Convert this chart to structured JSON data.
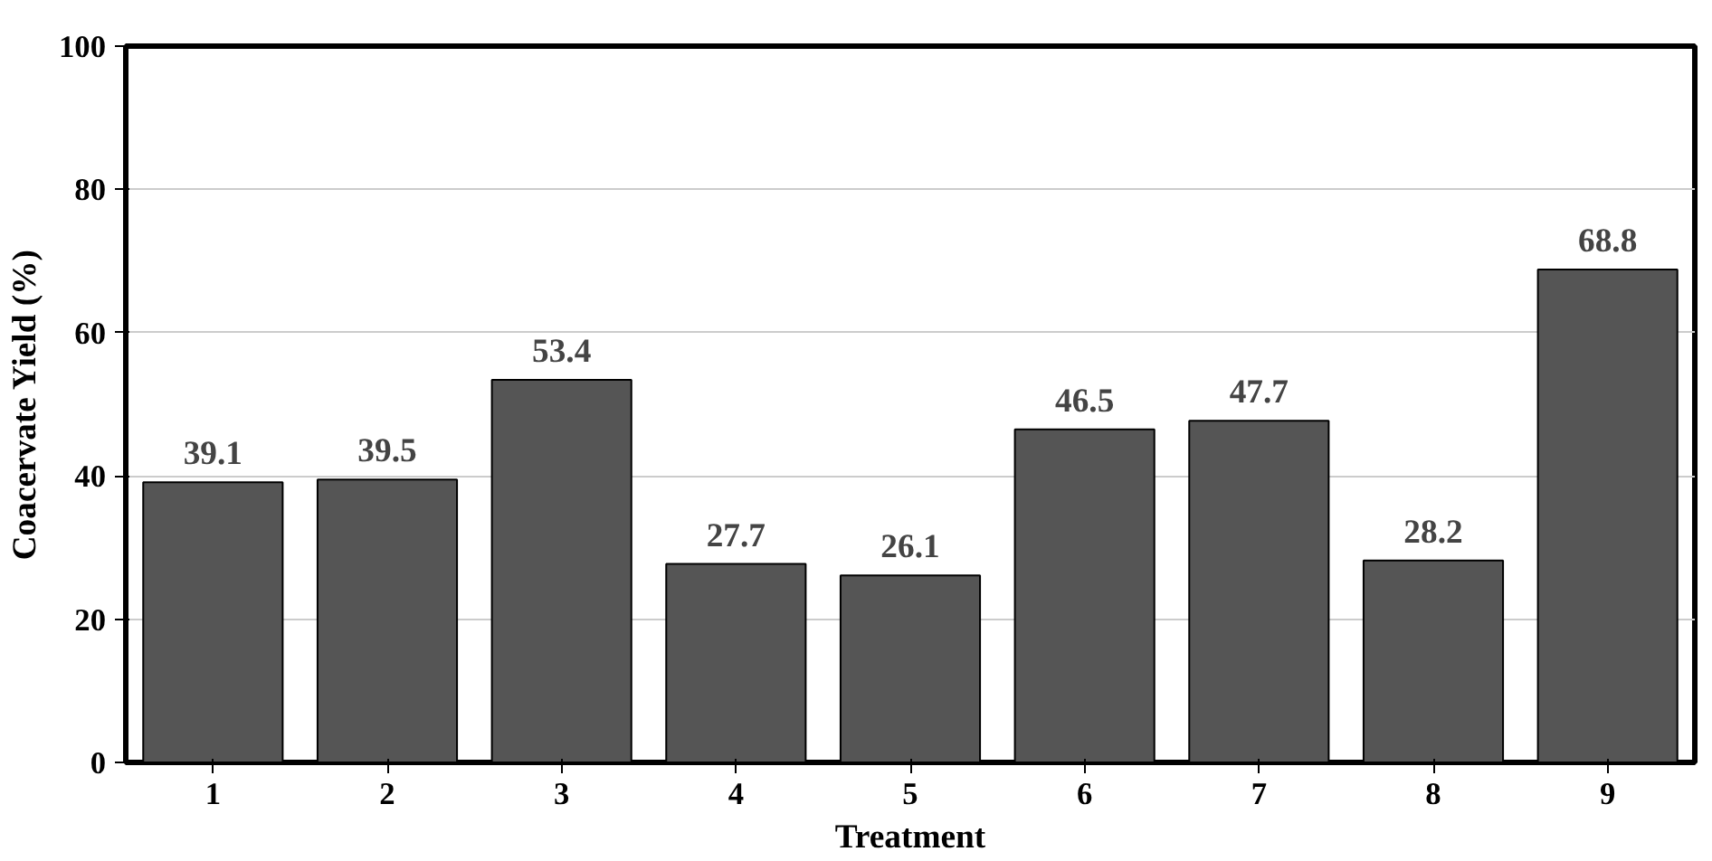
{
  "chart_data": {
    "type": "bar",
    "xlabel": "Treatment",
    "ylabel": "Coacervate Yield (%)",
    "categories": [
      "1",
      "2",
      "3",
      "4",
      "5",
      "6",
      "7",
      "8",
      "9"
    ],
    "values": [
      39.1,
      39.5,
      53.4,
      27.7,
      26.1,
      46.5,
      47.7,
      28.2,
      68.8
    ],
    "color": "#555555",
    "ylim": [
      0,
      100
    ],
    "yticks": [
      0,
      20,
      40,
      60,
      80,
      100
    ],
    "grid": "y",
    "data_labels": true
  }
}
